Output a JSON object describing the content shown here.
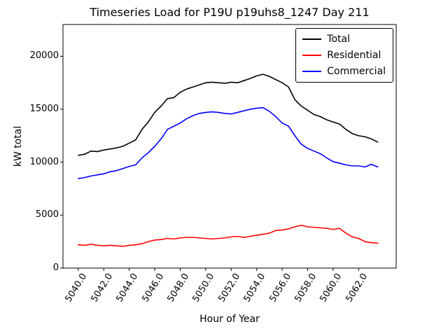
{
  "chart_data": {
    "type": "line",
    "title": "Timeseries Load for P19U p19uhs8_1247  Day 211",
    "xlabel": "Hour of Year",
    "ylabel": "kW total",
    "xlim": [
      5038.8,
      5064.95
    ],
    "ylim": [
      0,
      23000
    ],
    "grid": false,
    "legend_position": "upper right",
    "xticks": {
      "values": [
        5040,
        5042,
        5044,
        5046,
        5048,
        5050,
        5052,
        5054,
        5056,
        5058,
        5060,
        5062
      ],
      "labels": [
        "5040.0",
        "5042.0",
        "5044.0",
        "5046.0",
        "5048.0",
        "5050.0",
        "5052.0",
        "5054.0",
        "5056.0",
        "5058.0",
        "5060.0",
        "5062.0"
      ]
    },
    "yticks": {
      "values": [
        0,
        5000,
        10000,
        15000,
        20000
      ],
      "labels": [
        "0",
        "5000",
        "10000",
        "15000",
        "20000"
      ]
    },
    "x": [
      5040.0,
      5040.5,
      5041.0,
      5041.5,
      5042.0,
      5042.5,
      5043.0,
      5043.5,
      5044.0,
      5044.5,
      5045.0,
      5045.5,
      5046.0,
      5046.5,
      5047.0,
      5047.5,
      5048.0,
      5048.5,
      5049.0,
      5049.5,
      5050.0,
      5050.5,
      5051.0,
      5051.5,
      5052.0,
      5052.5,
      5053.0,
      5053.5,
      5054.0,
      5054.5,
      5055.0,
      5055.5,
      5056.0,
      5056.5,
      5057.0,
      5057.5,
      5058.0,
      5058.5,
      5059.0,
      5059.5,
      5060.0,
      5060.5,
      5061.0,
      5061.5,
      5062.0,
      5062.5,
      5063.0,
      5063.5
    ],
    "series": [
      {
        "name": "Total",
        "color": "#000000",
        "values": [
          10650,
          10750,
          11050,
          11000,
          11150,
          11250,
          11350,
          11500,
          11800,
          12100,
          13100,
          13800,
          14700,
          15300,
          16000,
          16100,
          16600,
          16900,
          17100,
          17300,
          17500,
          17550,
          17500,
          17450,
          17550,
          17500,
          17700,
          17900,
          18150,
          18300,
          18100,
          17800,
          17500,
          17100,
          15900,
          15300,
          14900,
          14500,
          14300,
          14000,
          13800,
          13600,
          13100,
          12700,
          12500,
          12400,
          12200,
          11900
        ]
      },
      {
        "name": "Residential",
        "color": "#ff0000",
        "values": [
          2200,
          2150,
          2250,
          2150,
          2100,
          2150,
          2100,
          2050,
          2150,
          2200,
          2300,
          2500,
          2650,
          2700,
          2800,
          2750,
          2850,
          2900,
          2900,
          2850,
          2800,
          2750,
          2800,
          2850,
          2950,
          3000,
          2900,
          3000,
          3100,
          3200,
          3300,
          3550,
          3600,
          3700,
          3900,
          4050,
          3900,
          3850,
          3800,
          3750,
          3650,
          3750,
          3300,
          2950,
          2800,
          2500,
          2400,
          2350
        ]
      },
      {
        "name": "Commercial",
        "color": "#0000ff",
        "values": [
          8450,
          8550,
          8700,
          8800,
          8900,
          9100,
          9200,
          9400,
          9600,
          9750,
          10400,
          10900,
          11500,
          12200,
          13100,
          13400,
          13700,
          14100,
          14400,
          14600,
          14700,
          14750,
          14700,
          14600,
          14550,
          14700,
          14850,
          15000,
          15100,
          15150,
          14800,
          14300,
          13700,
          13400,
          12500,
          11700,
          11300,
          11050,
          10800,
          10400,
          10050,
          9900,
          9750,
          9650,
          9650,
          9550,
          9800,
          9550
        ]
      }
    ]
  }
}
